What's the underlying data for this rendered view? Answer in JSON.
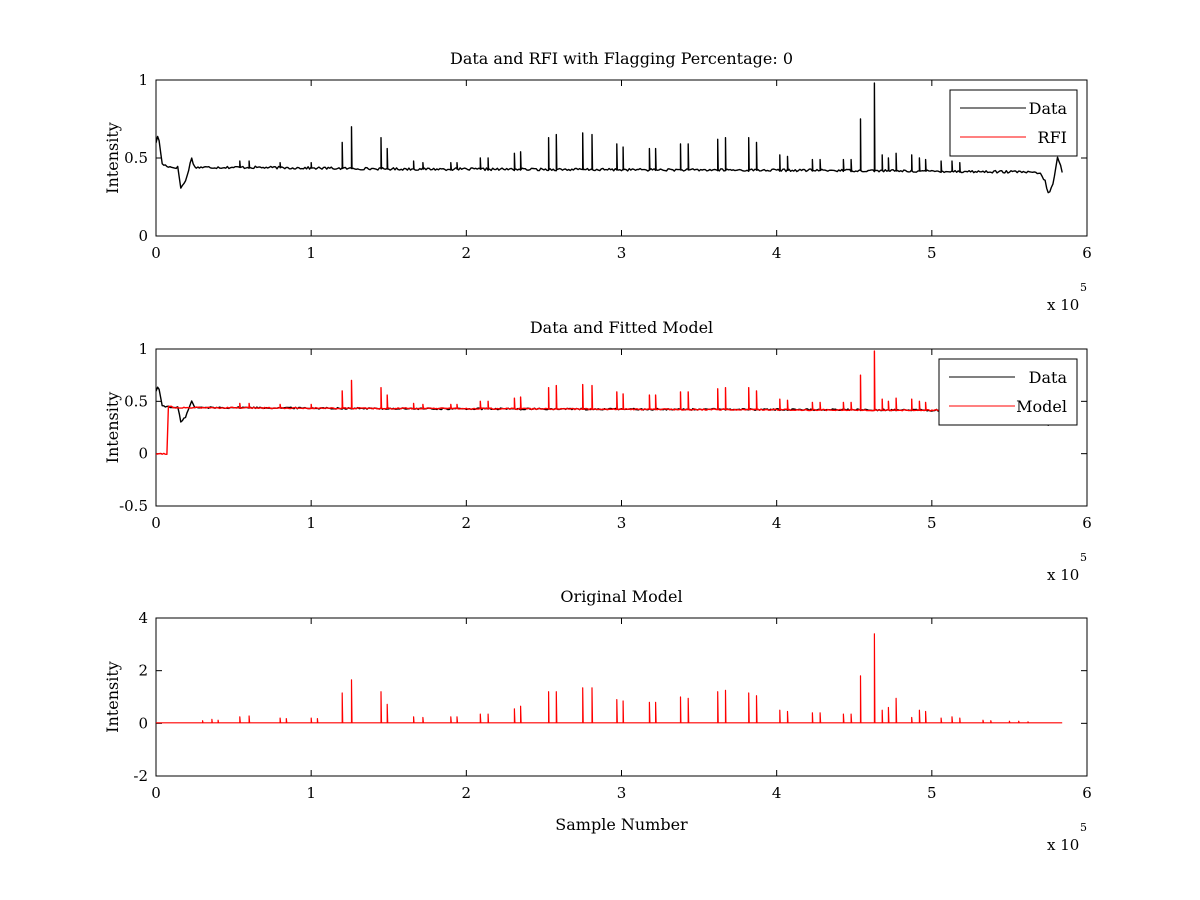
{
  "chart_data": [
    {
      "type": "line",
      "title": "Data and RFI with Flagging Percentage: 0",
      "xlabel": "",
      "ylabel": "Intensity",
      "xlim": [
        0,
        600000
      ],
      "ylim": [
        0,
        1
      ],
      "x_ticks": [
        0,
        100000,
        200000,
        300000,
        400000,
        500000,
        600000
      ],
      "x_tick_labels": [
        "0",
        "1",
        "2",
        "3",
        "4",
        "5",
        "6"
      ],
      "y_ticks": [
        0,
        0.5,
        1
      ],
      "y_tick_labels": [
        "0",
        "0.5",
        "1"
      ],
      "x_exponent_label": "x 10",
      "x_exponent": "5",
      "legend": {
        "location": "top-right",
        "entries": [
          "Data",
          "RFI"
        ]
      },
      "series": [
        {
          "name": "Data",
          "color": "#000000",
          "baseline": [
            [
              0,
              0.6
            ],
            [
              1500,
              0.65
            ],
            [
              4000,
              0.46
            ],
            [
              10000,
              0.44
            ],
            [
              14000,
              0.44
            ],
            [
              16000,
              0.31
            ],
            [
              19000,
              0.35
            ],
            [
              23000,
              0.5
            ],
            [
              25000,
              0.44
            ],
            [
              60000,
              0.44
            ],
            [
              150000,
              0.43
            ],
            [
              300000,
              0.425
            ],
            [
              450000,
              0.42
            ],
            [
              560000,
              0.41
            ],
            [
              570000,
              0.4
            ],
            [
              573000,
              0.35
            ],
            [
              575000,
              0.27
            ],
            [
              578000,
              0.33
            ],
            [
              581000,
              0.5
            ],
            [
              583000,
              0.45
            ],
            [
              584000,
              0.41
            ]
          ],
          "spikes": [
            [
              54000,
              0.48
            ],
            [
              60000,
              0.48
            ],
            [
              80000,
              0.47
            ],
            [
              100000,
              0.47
            ],
            [
              120000,
              0.6
            ],
            [
              126000,
              0.7
            ],
            [
              145000,
              0.63
            ],
            [
              149000,
              0.56
            ],
            [
              166000,
              0.48
            ],
            [
              172000,
              0.47
            ],
            [
              190000,
              0.47
            ],
            [
              194000,
              0.47
            ],
            [
              209000,
              0.5
            ],
            [
              214000,
              0.5
            ],
            [
              231000,
              0.53
            ],
            [
              235000,
              0.54
            ],
            [
              253000,
              0.63
            ],
            [
              258000,
              0.65
            ],
            [
              275000,
              0.66
            ],
            [
              281000,
              0.65
            ],
            [
              297000,
              0.59
            ],
            [
              301000,
              0.57
            ],
            [
              318000,
              0.56
            ],
            [
              322000,
              0.56
            ],
            [
              338000,
              0.59
            ],
            [
              343000,
              0.59
            ],
            [
              362000,
              0.62
            ],
            [
              367000,
              0.63
            ],
            [
              382000,
              0.63
            ],
            [
              387000,
              0.6
            ],
            [
              402000,
              0.52
            ],
            [
              407000,
              0.51
            ],
            [
              423000,
              0.49
            ],
            [
              428000,
              0.49
            ],
            [
              443000,
              0.49
            ],
            [
              448000,
              0.49
            ],
            [
              454000,
              0.75
            ],
            [
              463000,
              0.98
            ],
            [
              468000,
              0.52
            ],
            [
              472000,
              0.5
            ],
            [
              477000,
              0.53
            ],
            [
              487000,
              0.52
            ],
            [
              492000,
              0.5
            ],
            [
              496000,
              0.49
            ],
            [
              506000,
              0.48
            ],
            [
              513000,
              0.48
            ],
            [
              518000,
              0.47
            ]
          ]
        },
        {
          "name": "RFI",
          "color": "#ff0000",
          "values": []
        }
      ]
    },
    {
      "type": "line",
      "title": "Data and Fitted Model",
      "xlabel": "",
      "ylabel": "Intensity",
      "xlim": [
        0,
        600000
      ],
      "ylim": [
        -0.5,
        1
      ],
      "x_ticks": [
        0,
        100000,
        200000,
        300000,
        400000,
        500000,
        600000
      ],
      "x_tick_labels": [
        "0",
        "1",
        "2",
        "3",
        "4",
        "5",
        "6"
      ],
      "y_ticks": [
        -0.5,
        0,
        0.5,
        1
      ],
      "y_tick_labels": [
        "-0.5",
        "0",
        "0.5",
        "1"
      ],
      "x_exponent_label": "x 10",
      "x_exponent": "5",
      "legend": {
        "location": "top-right",
        "entries": [
          "Data",
          "Model"
        ]
      },
      "series": [
        {
          "name": "Data",
          "color": "#000000",
          "baseline": [
            [
              0,
              0.6
            ],
            [
              1500,
              0.65
            ],
            [
              4000,
              0.46
            ],
            [
              10000,
              0.44
            ],
            [
              14000,
              0.44
            ],
            [
              16000,
              0.31
            ],
            [
              19000,
              0.35
            ],
            [
              23000,
              0.5
            ],
            [
              25000,
              0.44
            ],
            [
              60000,
              0.44
            ],
            [
              150000,
              0.43
            ],
            [
              300000,
              0.425
            ],
            [
              450000,
              0.42
            ],
            [
              560000,
              0.41
            ],
            [
              570000,
              0.4
            ],
            [
              573000,
              0.35
            ],
            [
              575000,
              0.27
            ],
            [
              578000,
              0.33
            ],
            [
              581000,
              0.5
            ],
            [
              583000,
              0.45
            ],
            [
              584000,
              0.41
            ]
          ]
        },
        {
          "name": "Model",
          "color": "#ff0000",
          "baseline": [
            [
              0,
              0
            ],
            [
              7500,
              0
            ],
            [
              8000,
              0.45
            ],
            [
              10000,
              0.45
            ],
            [
              11000,
              0.44
            ],
            [
              300000,
              0.425
            ],
            [
              584000,
              0.41
            ]
          ],
          "spikes": [
            [
              54000,
              0.48
            ],
            [
              60000,
              0.48
            ],
            [
              80000,
              0.47
            ],
            [
              100000,
              0.47
            ],
            [
              120000,
              0.6
            ],
            [
              126000,
              0.7
            ],
            [
              145000,
              0.63
            ],
            [
              149000,
              0.56
            ],
            [
              166000,
              0.48
            ],
            [
              172000,
              0.47
            ],
            [
              190000,
              0.47
            ],
            [
              194000,
              0.47
            ],
            [
              209000,
              0.5
            ],
            [
              214000,
              0.5
            ],
            [
              231000,
              0.53
            ],
            [
              235000,
              0.54
            ],
            [
              253000,
              0.63
            ],
            [
              258000,
              0.65
            ],
            [
              275000,
              0.66
            ],
            [
              281000,
              0.65
            ],
            [
              297000,
              0.59
            ],
            [
              301000,
              0.57
            ],
            [
              318000,
              0.56
            ],
            [
              322000,
              0.56
            ],
            [
              338000,
              0.59
            ],
            [
              343000,
              0.59
            ],
            [
              362000,
              0.62
            ],
            [
              367000,
              0.63
            ],
            [
              382000,
              0.63
            ],
            [
              387000,
              0.6
            ],
            [
              402000,
              0.52
            ],
            [
              407000,
              0.51
            ],
            [
              423000,
              0.49
            ],
            [
              428000,
              0.49
            ],
            [
              443000,
              0.49
            ],
            [
              448000,
              0.49
            ],
            [
              454000,
              0.75
            ],
            [
              463000,
              0.98
            ],
            [
              468000,
              0.52
            ],
            [
              472000,
              0.5
            ],
            [
              477000,
              0.53
            ],
            [
              487000,
              0.52
            ],
            [
              492000,
              0.5
            ],
            [
              496000,
              0.49
            ],
            [
              506000,
              0.48
            ],
            [
              513000,
              0.48
            ],
            [
              518000,
              0.47
            ]
          ]
        }
      ]
    },
    {
      "type": "line",
      "title": "Original Model",
      "xlabel": "Sample Number",
      "ylabel": "Intensity",
      "xlim": [
        0,
        600000
      ],
      "ylim": [
        -2,
        4
      ],
      "x_ticks": [
        0,
        100000,
        200000,
        300000,
        400000,
        500000,
        600000
      ],
      "x_tick_labels": [
        "0",
        "1",
        "2",
        "3",
        "4",
        "5",
        "6"
      ],
      "y_ticks": [
        -2,
        0,
        2,
        4
      ],
      "y_tick_labels": [
        "-2",
        "0",
        "2",
        "4"
      ],
      "x_exponent_label": "x 10",
      "x_exponent": "5",
      "series": [
        {
          "name": "",
          "color": "#ff0000",
          "baseline": [
            [
              0,
              0.02
            ],
            [
              584000,
              0.02
            ]
          ],
          "spikes": [
            [
              30000,
              0.1
            ],
            [
              36000,
              0.15
            ],
            [
              40000,
              0.12
            ],
            [
              54000,
              0.25
            ],
            [
              60000,
              0.28
            ],
            [
              80000,
              0.2
            ],
            [
              84000,
              0.18
            ],
            [
              100000,
              0.2
            ],
            [
              104000,
              0.18
            ],
            [
              120000,
              1.15
            ],
            [
              126000,
              1.65
            ],
            [
              145000,
              1.2
            ],
            [
              149000,
              0.72
            ],
            [
              166000,
              0.25
            ],
            [
              172000,
              0.22
            ],
            [
              190000,
              0.25
            ],
            [
              194000,
              0.25
            ],
            [
              209000,
              0.35
            ],
            [
              214000,
              0.35
            ],
            [
              231000,
              0.55
            ],
            [
              235000,
              0.65
            ],
            [
              253000,
              1.2
            ],
            [
              258000,
              1.2
            ],
            [
              275000,
              1.35
            ],
            [
              281000,
              1.35
            ],
            [
              297000,
              0.9
            ],
            [
              301000,
              0.85
            ],
            [
              318000,
              0.8
            ],
            [
              322000,
              0.8
            ],
            [
              338000,
              1.0
            ],
            [
              343000,
              0.95
            ],
            [
              362000,
              1.2
            ],
            [
              367000,
              1.25
            ],
            [
              382000,
              1.15
            ],
            [
              387000,
              1.05
            ],
            [
              402000,
              0.5
            ],
            [
              407000,
              0.45
            ],
            [
              423000,
              0.4
            ],
            [
              428000,
              0.4
            ],
            [
              443000,
              0.35
            ],
            [
              448000,
              0.35
            ],
            [
              454000,
              1.8
            ],
            [
              463000,
              3.4
            ],
            [
              468000,
              0.5
            ],
            [
              472000,
              0.6
            ],
            [
              477000,
              0.95
            ],
            [
              487000,
              0.22
            ],
            [
              492000,
              0.5
            ],
            [
              496000,
              0.45
            ],
            [
              506000,
              0.2
            ],
            [
              513000,
              0.25
            ],
            [
              518000,
              0.2
            ],
            [
              533000,
              0.12
            ],
            [
              538000,
              0.1
            ],
            [
              550000,
              0.08
            ],
            [
              556000,
              0.08
            ],
            [
              562000,
              0.06
            ]
          ]
        }
      ]
    }
  ]
}
